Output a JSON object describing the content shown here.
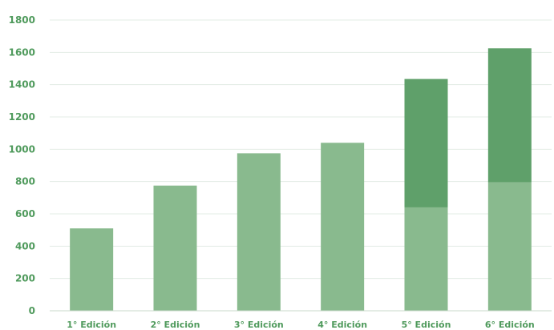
{
  "chart_data": {
    "type": "bar",
    "stacked": true,
    "title": "",
    "xlabel": "",
    "ylabel": "",
    "ylim": [
      0,
      1800
    ],
    "yticks": [
      0,
      200,
      400,
      600,
      800,
      1000,
      1200,
      1400,
      1600,
      1800
    ],
    "grid": true,
    "legend": "none",
    "categories": [
      "1° Edición",
      "2° Edición",
      "3° Edición",
      "4° Edición",
      "5° Edición",
      "6° Edición"
    ],
    "series": [
      {
        "values": [
          510,
          775,
          975,
          1040,
          640,
          795
        ],
        "color": "#89ba8e"
      },
      {
        "values": [
          0,
          0,
          0,
          0,
          795,
          830
        ],
        "color": "#5fa06a"
      }
    ]
  }
}
